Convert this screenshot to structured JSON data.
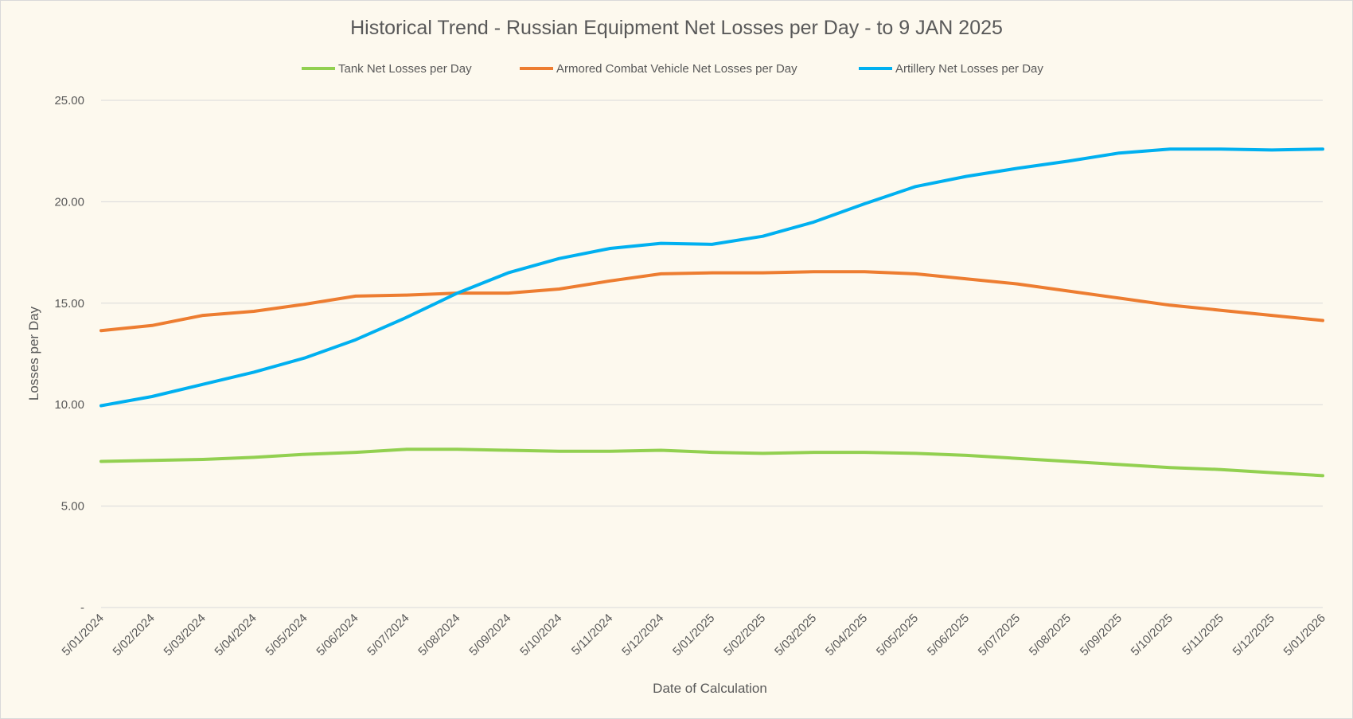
{
  "chart_data": {
    "type": "line",
    "title": "Historical Trend - Russian Equipment Net Losses per Day - to 9 JAN 2025",
    "xlabel": "Date of Calculation",
    "ylabel": "Losses per Day",
    "ylim": [
      0,
      25
    ],
    "y_ticks": [
      {
        "value": 0,
        "label": "-"
      },
      {
        "value": 5,
        "label": "5.00"
      },
      {
        "value": 10,
        "label": "10.00"
      },
      {
        "value": 15,
        "label": "15.00"
      },
      {
        "value": 20,
        "label": "20.00"
      },
      {
        "value": 25,
        "label": "25.00"
      }
    ],
    "x_tick_labels": [
      "5/01/2024",
      "5/02/2024",
      "5/03/2024",
      "5/04/2024",
      "5/05/2024",
      "5/06/2024",
      "5/07/2024",
      "5/08/2024",
      "5/09/2024",
      "5/10/2024",
      "5/11/2024",
      "5/12/2024",
      "5/01/2025",
      "5/02/2025",
      "5/03/2025",
      "5/04/2025",
      "5/05/2025",
      "5/06/2025",
      "5/07/2025",
      "5/08/2025",
      "5/09/2025",
      "5/10/2025",
      "5/11/2025",
      "5/12/2025",
      "5/01/2026"
    ],
    "grid": true,
    "legend_position": "top",
    "series": [
      {
        "name": "Tank Net Losses per Day",
        "color": "#92d050",
        "values": [
          7.2,
          7.25,
          7.3,
          7.4,
          7.55,
          7.65,
          7.8,
          7.8,
          7.75,
          7.7,
          7.7,
          7.75,
          7.65,
          7.6,
          7.65,
          7.65,
          7.6,
          7.5,
          7.35,
          7.2,
          7.05,
          6.9,
          6.8,
          6.65,
          6.5
        ]
      },
      {
        "name": "Armored Combat Vehicle Net Losses per Day",
        "color": "#ed7d31",
        "values": [
          13.65,
          13.9,
          14.4,
          14.6,
          14.95,
          15.35,
          15.4,
          15.5,
          15.5,
          15.7,
          16.1,
          16.45,
          16.5,
          16.5,
          16.55,
          16.55,
          16.45,
          16.2,
          15.95,
          15.6,
          15.25,
          14.9,
          14.65,
          14.4,
          14.15
        ]
      },
      {
        "name": "Artillery Net Losses per Day",
        "color": "#00b0f0",
        "values": [
          9.95,
          10.4,
          11.0,
          11.6,
          12.3,
          13.2,
          14.3,
          15.5,
          16.5,
          17.2,
          17.7,
          17.95,
          17.9,
          18.3,
          19.0,
          19.9,
          20.75,
          21.25,
          21.65,
          22.0,
          22.4,
          22.6,
          22.6,
          22.55,
          22.6
        ]
      }
    ]
  }
}
